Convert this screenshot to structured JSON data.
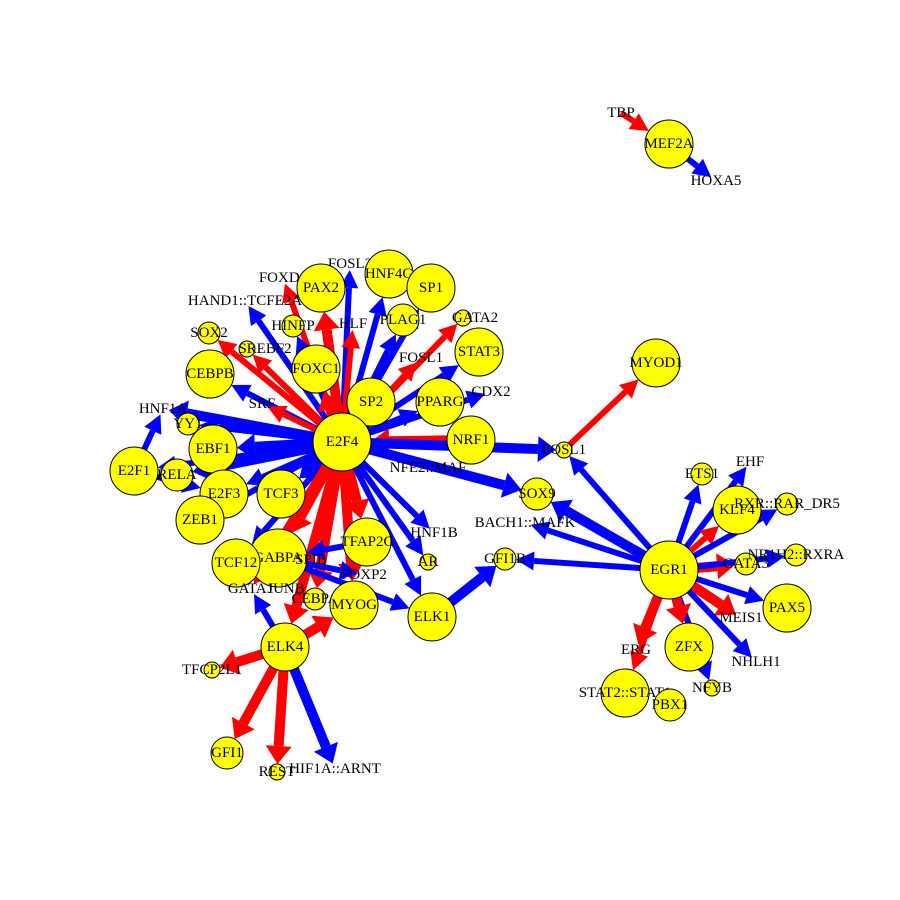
{
  "colors": {
    "background": "#ffffff",
    "node_fill": "#ffff00",
    "node_stroke": "#000000",
    "positive_edge": "#0000ff",
    "negative_edge": "#ff0000",
    "label": "#000000"
  },
  "nodes": [
    {
      "id": "TBP",
      "label": "TBP",
      "size": "none"
    },
    {
      "id": "MEF2A",
      "label": "MEF2A",
      "size": "large"
    },
    {
      "id": "HOXA5",
      "label": "HOXA5",
      "size": "none"
    },
    {
      "id": "FOSL2",
      "label": "FOSL2",
      "size": "none"
    },
    {
      "id": "HNF4G",
      "label": "HNF4G",
      "size": "large"
    },
    {
      "id": "FOXD1",
      "label": "FOXD1",
      "size": "none"
    },
    {
      "id": "PAX2",
      "label": "PAX2",
      "size": "large"
    },
    {
      "id": "SP1",
      "label": "SP1",
      "size": "large"
    },
    {
      "id": "HAND1::TCFE2A",
      "label": "HAND1::TCFE2A",
      "size": "none"
    },
    {
      "id": "PLAG1",
      "label": "PLAG1",
      "size": "medium"
    },
    {
      "id": "GATA2",
      "label": "GATA2",
      "size": "tiny"
    },
    {
      "id": "HINFP",
      "label": "HINFP",
      "size": "small"
    },
    {
      "id": "HLF",
      "label": "HLF",
      "size": "none"
    },
    {
      "id": "SOX2",
      "label": "SOX2",
      "size": "small"
    },
    {
      "id": "SREBF2",
      "label": "SREBF2",
      "size": "tiny"
    },
    {
      "id": "STAT3",
      "label": "STAT3",
      "size": "large"
    },
    {
      "id": "FOXC1",
      "label": "FOXC1",
      "size": "large"
    },
    {
      "id": "FOSL1",
      "label": "FOSL1",
      "size": "none"
    },
    {
      "id": "MYOD1",
      "label": "MYOD1",
      "size": "large"
    },
    {
      "id": "CEBPB",
      "label": "CEBPB",
      "size": "large"
    },
    {
      "id": "CDX2",
      "label": "CDX2",
      "size": "none"
    },
    {
      "id": "SRF",
      "label": "SRF",
      "size": "none"
    },
    {
      "id": "SP2",
      "label": "SP2",
      "size": "large"
    },
    {
      "id": "PPARG",
      "label": "PPARG",
      "size": "large"
    },
    {
      "id": "HNF1A",
      "label": "HNF1A",
      "size": "none"
    },
    {
      "id": "YY1",
      "label": "YY1",
      "size": "small"
    },
    {
      "id": "E2F4",
      "label": "E2F4",
      "size": "xlarge"
    },
    {
      "id": "NRF1",
      "label": "NRF1",
      "size": "large"
    },
    {
      "id": "EBF1",
      "label": "EBF1",
      "size": "large"
    },
    {
      "id": "FOSL1b",
      "label": "FOSL1",
      "size": "tiny"
    },
    {
      "id": "E2F1",
      "label": "E2F1",
      "size": "large"
    },
    {
      "id": "RELA",
      "label": "RELA",
      "size": "medium"
    },
    {
      "id": "NFE2::MAF",
      "label": "NFE2::MAF",
      "size": "none"
    },
    {
      "id": "ETS1",
      "label": "ETS1",
      "size": "small"
    },
    {
      "id": "EHF",
      "label": "EHF",
      "size": "none"
    },
    {
      "id": "E2F3",
      "label": "E2F3",
      "size": "large"
    },
    {
      "id": "TCF3",
      "label": "TCF3",
      "size": "large"
    },
    {
      "id": "SOX9",
      "label": "SOX9",
      "size": "medium"
    },
    {
      "id": "KLF4",
      "label": "KLF4",
      "size": "large"
    },
    {
      "id": "RXR::RAR_DR5",
      "label": "RXR::RAR_DR5",
      "size": "small"
    },
    {
      "id": "ZEB1",
      "label": "ZEB1",
      "size": "large"
    },
    {
      "id": "BACH1::MAFK",
      "label": "BACH1::MAFK",
      "size": "none"
    },
    {
      "id": "HNF1B",
      "label": "HNF1B",
      "size": "none"
    },
    {
      "id": "TFAP2C",
      "label": "TFAP2C",
      "size": "large"
    },
    {
      "id": "GABPA",
      "label": "GABPA",
      "size": "xlarge"
    },
    {
      "id": "SPIB",
      "label": "SPIB",
      "size": "none"
    },
    {
      "id": "TCF12",
      "label": "TCF12",
      "size": "large"
    },
    {
      "id": "AR",
      "label": "AR",
      "size": "tiny"
    },
    {
      "id": "GFI1B",
      "label": "GFI1B",
      "size": "small"
    },
    {
      "id": "EGR1",
      "label": "EGR1",
      "size": "xlarge"
    },
    {
      "id": "GATA3",
      "label": "GATA3",
      "size": "small"
    },
    {
      "id": "NR1H2::RXRA",
      "label": "NR1H2::RXRA",
      "size": "small"
    },
    {
      "id": "FOXP2",
      "label": "FOXP2",
      "size": "none"
    },
    {
      "id": "GATA1",
      "label": "GATA1",
      "size": "none"
    },
    {
      "id": "JUNB",
      "label": "JUNB",
      "size": "none"
    },
    {
      "id": "CEBPA",
      "label": "CEBPA",
      "size": "small"
    },
    {
      "id": "MYOG",
      "label": "MYOG",
      "size": "large"
    },
    {
      "id": "ELK1",
      "label": "ELK1",
      "size": "large"
    },
    {
      "id": "PAX5",
      "label": "PAX5",
      "size": "large"
    },
    {
      "id": "MEIS1",
      "label": "MEIS1",
      "size": "none"
    },
    {
      "id": "ELK4",
      "label": "ELK4",
      "size": "large"
    },
    {
      "id": "ERG",
      "label": "ERG",
      "size": "none"
    },
    {
      "id": "ZFX",
      "label": "ZFX",
      "size": "large"
    },
    {
      "id": "NHLH1",
      "label": "NHLH1",
      "size": "none"
    },
    {
      "id": "TFCP2L1",
      "label": "TFCP2L1",
      "size": "tiny"
    },
    {
      "id": "STAT2::STAT1",
      "label": "STAT2::STAT1",
      "size": "large"
    },
    {
      "id": "NFYB",
      "label": "NFYB",
      "size": "tiny"
    },
    {
      "id": "PBX1",
      "label": "PBX1",
      "size": "medium"
    },
    {
      "id": "GFI1",
      "label": "GFI1",
      "size": "medium"
    },
    {
      "id": "REST",
      "label": "REST",
      "size": "tiny"
    },
    {
      "id": "HIF1A::ARNT",
      "label": "HIF1A::ARNT",
      "size": "none"
    }
  ],
  "edges": [
    {
      "from": "TBP",
      "to": "MEF2A",
      "sign": "negative",
      "weight": "medium"
    },
    {
      "from": "MEF2A",
      "to": "HOXA5",
      "sign": "positive",
      "weight": "medium"
    },
    {
      "from": "E2F4",
      "to": "FOSL2",
      "sign": "positive",
      "weight": "medium"
    },
    {
      "from": "E2F4",
      "to": "HNF4G",
      "sign": "positive",
      "weight": "medium"
    },
    {
      "from": "E2F4",
      "to": "FOXD1",
      "sign": "negative",
      "weight": "medium"
    },
    {
      "from": "E2F4",
      "to": "PAX2",
      "sign": "negative",
      "weight": "heavy"
    },
    {
      "from": "E2F4",
      "to": "SP1",
      "sign": "positive",
      "weight": "medium"
    },
    {
      "from": "E2F4",
      "to": "HAND1::TCFE2A",
      "sign": "positive",
      "weight": "medium"
    },
    {
      "from": "E2F4",
      "to": "PLAG1",
      "sign": "positive",
      "weight": "medium"
    },
    {
      "from": "E2F4",
      "to": "GATA2",
      "sign": "negative",
      "weight": "medium"
    },
    {
      "from": "E2F4",
      "to": "HINFP",
      "sign": "positive",
      "weight": "medium"
    },
    {
      "from": "E2F4",
      "to": "HLF",
      "sign": "negative",
      "weight": "medium"
    },
    {
      "from": "E2F4",
      "to": "SOX2",
      "sign": "negative",
      "weight": "medium"
    },
    {
      "from": "E2F4",
      "to": "SREBF2",
      "sign": "negative",
      "weight": "medium"
    },
    {
      "from": "E2F4",
      "to": "STAT3",
      "sign": "positive",
      "weight": "medium"
    },
    {
      "from": "E2F4",
      "to": "FOXC1",
      "sign": "negative",
      "weight": "heavy"
    },
    {
      "from": "E2F4",
      "to": "FOSL1",
      "sign": "negative",
      "weight": "medium"
    },
    {
      "from": "E2F4",
      "to": "CEBPB",
      "sign": "positive",
      "weight": "medium"
    },
    {
      "from": "E2F4",
      "to": "CDX2",
      "sign": "positive",
      "weight": "medium"
    },
    {
      "from": "E2F4",
      "to": "SRF",
      "sign": "negative",
      "weight": "medium"
    },
    {
      "from": "E2F4",
      "to": "SP2",
      "sign": "positive",
      "weight": "medium"
    },
    {
      "from": "E2F4",
      "to": "PPARG",
      "sign": "positive",
      "weight": "medium"
    },
    {
      "from": "E2F4",
      "to": "HNF1A",
      "sign": "positive",
      "weight": "heavy"
    },
    {
      "from": "E2F4",
      "to": "YY1",
      "sign": "positive",
      "weight": "medium"
    },
    {
      "from": "NRF1",
      "to": "E2F4",
      "sign": "negative",
      "weight": "heavy"
    },
    {
      "from": "E2F4",
      "to": "EBF1",
      "sign": "positive",
      "weight": "heavy"
    },
    {
      "from": "E2F4",
      "to": "FOSL1b",
      "sign": "positive",
      "weight": "heavy"
    },
    {
      "from": "E2F4",
      "to": "E2F1",
      "sign": "positive",
      "weight": "medium"
    },
    {
      "from": "E2F4",
      "to": "RELA",
      "sign": "positive",
      "weight": "heavy"
    },
    {
      "from": "E2F4",
      "to": "E2F3",
      "sign": "positive",
      "weight": "medium"
    },
    {
      "from": "E2F4",
      "to": "TCF3",
      "sign": "positive",
      "weight": "heavy"
    },
    {
      "from": "E2F4",
      "to": "SOX9",
      "sign": "positive",
      "weight": "heavy"
    },
    {
      "from": "E2F4",
      "to": "ZEB1",
      "sign": "positive",
      "weight": "medium"
    },
    {
      "from": "E2F4",
      "to": "HNF1B",
      "sign": "positive",
      "weight": "medium"
    },
    {
      "from": "E2F4",
      "to": "TFAP2C",
      "sign": "negative",
      "weight": "heavy"
    },
    {
      "from": "E2F4",
      "to": "GABPA",
      "sign": "negative",
      "weight": "heavy"
    },
    {
      "from": "E2F4",
      "to": "TCF12",
      "sign": "positive",
      "weight": "medium"
    },
    {
      "from": "E2F4",
      "to": "ELK4",
      "sign": "negative",
      "weight": "heavy"
    },
    {
      "from": "E2F4",
      "to": "MYOG",
      "sign": "negative",
      "weight": "heavy"
    },
    {
      "from": "E2F4",
      "to": "ELK1",
      "sign": "positive",
      "weight": "medium"
    },
    {
      "from": "E2F4",
      "to": "AR",
      "sign": "positive",
      "weight": "medium"
    },
    {
      "from": "E2F4",
      "to": "CEBPA",
      "sign": "negative",
      "weight": "heavy"
    },
    {
      "from": "E2F4",
      "to": "GATA1",
      "sign": "negative",
      "weight": "heavy"
    },
    {
      "from": "E2F1",
      "to": "HNF1A",
      "sign": "positive",
      "weight": "medium"
    },
    {
      "from": "E2F1",
      "to": "E2F3",
      "sign": "positive",
      "weight": "medium"
    },
    {
      "from": "ELK4",
      "to": "GATA1",
      "sign": "positive",
      "weight": "medium"
    },
    {
      "from": "ELK4",
      "to": "TFCP2L1",
      "sign": "negative",
      "weight": "heavy"
    },
    {
      "from": "ELK4",
      "to": "GFI1",
      "sign": "negative",
      "weight": "heavy"
    },
    {
      "from": "ELK4",
      "to": "REST",
      "sign": "negative",
      "weight": "heavy"
    },
    {
      "from": "ELK4",
      "to": "HIF1A::ARNT",
      "sign": "positive",
      "weight": "heavy"
    },
    {
      "from": "ELK4",
      "to": "MYOG",
      "sign": "negative",
      "weight": "heavy"
    },
    {
      "from": "GABPA",
      "to": "FOXP2",
      "sign": "positive",
      "weight": "medium"
    },
    {
      "from": "GABPA",
      "to": "ELK1",
      "sign": "positive",
      "weight": "medium"
    },
    {
      "from": "TFAP2C",
      "to": "GABPA",
      "sign": "positive",
      "weight": "medium"
    },
    {
      "from": "ELK1",
      "to": "GFI1B",
      "sign": "positive",
      "weight": "heavy"
    },
    {
      "from": "FOSL1b",
      "to": "MYOD1",
      "sign": "negative",
      "weight": "medium"
    },
    {
      "from": "EGR1",
      "to": "FOSL1b",
      "sign": "positive",
      "weight": "medium"
    },
    {
      "from": "EGR1",
      "to": "SOX9",
      "sign": "positive",
      "weight": "heavy"
    },
    {
      "from": "EGR1",
      "to": "BACH1::MAFK",
      "sign": "positive",
      "weight": "medium"
    },
    {
      "from": "EGR1",
      "to": "GFI1B",
      "sign": "positive",
      "weight": "medium"
    },
    {
      "from": "EGR1",
      "to": "ETS1",
      "sign": "positive",
      "weight": "medium"
    },
    {
      "from": "EGR1",
      "to": "EHF",
      "sign": "positive",
      "weight": "medium"
    },
    {
      "from": "EGR1",
      "to": "KLF4",
      "sign": "negative",
      "weight": "medium"
    },
    {
      "from": "EGR1",
      "to": "RXR::RAR_DR5",
      "sign": "positive",
      "weight": "medium"
    },
    {
      "from": "EGR1",
      "to": "GATA3",
      "sign": "negative",
      "weight": "heavy"
    },
    {
      "from": "EGR1",
      "to": "NR1H2::RXRA",
      "sign": "positive",
      "weight": "medium"
    },
    {
      "from": "EGR1",
      "to": "PAX5",
      "sign": "positive",
      "weight": "medium"
    },
    {
      "from": "EGR1",
      "to": "MEIS1",
      "sign": "negative",
      "weight": "heavy"
    },
    {
      "from": "EGR1",
      "to": "NHLH1",
      "sign": "positive",
      "weight": "medium"
    },
    {
      "from": "EGR1",
      "to": "NFYB",
      "sign": "positive",
      "weight": "medium"
    },
    {
      "from": "EGR1",
      "to": "ZFX",
      "sign": "negative",
      "weight": "heavy"
    },
    {
      "from": "EGR1",
      "to": "ERG",
      "sign": "negative",
      "weight": "heavy"
    },
    {
      "from": "EGR1",
      "to": "STAT2::STAT1",
      "sign": "negative",
      "weight": "medium"
    }
  ]
}
